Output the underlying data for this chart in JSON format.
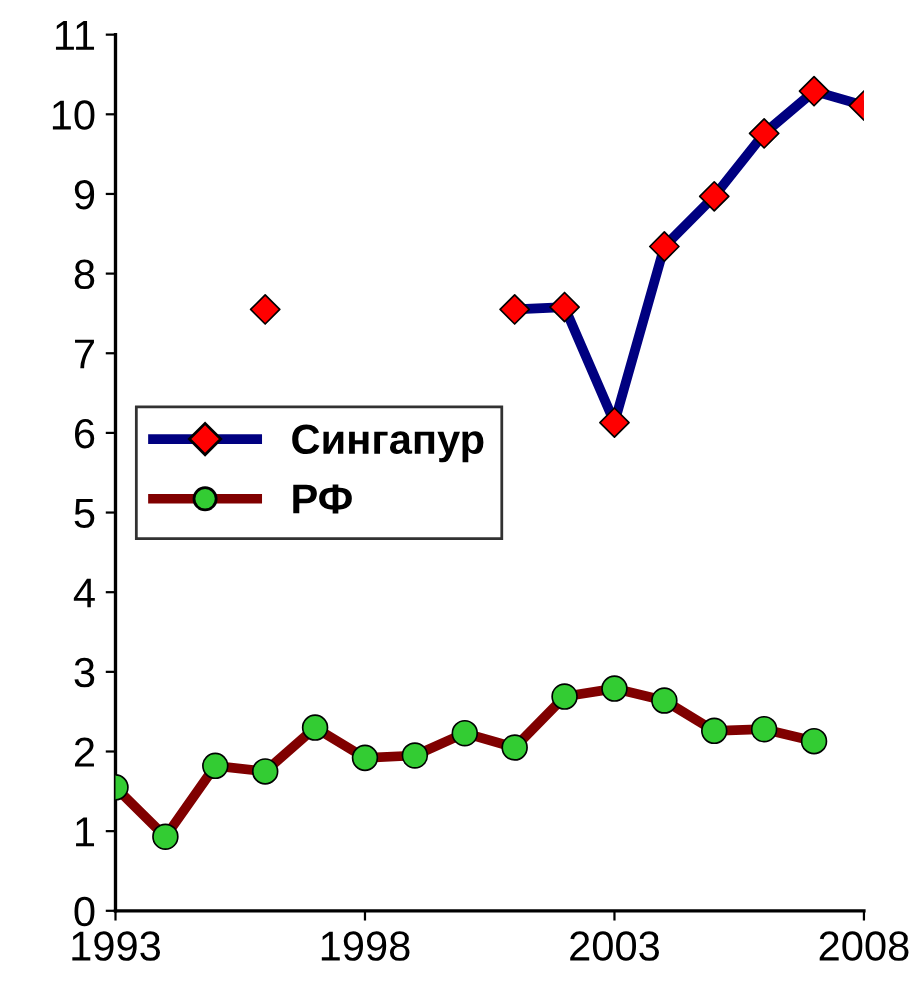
{
  "chart_data": {
    "type": "line",
    "x": [
      1993,
      1994,
      1995,
      1996,
      1997,
      1998,
      1999,
      2000,
      2001,
      2002,
      2003,
      2004,
      2005,
      2006,
      2007,
      2008
    ],
    "series": [
      {
        "name": "Сингапур",
        "color": "#000080",
        "marker": "diamond",
        "colors": [
          "#ff0000",
          "#ff0000",
          "#ff0000",
          "#ff0000",
          "#ff0000",
          "#ff0000",
          "#ff0000",
          "#ff0000",
          "#ff0000",
          "#ff0000",
          "#ff0000",
          "#ff0000",
          "#ff0000",
          "#ff0000",
          "#ff0000",
          "#ff0000"
        ],
        "values": [
          null,
          null,
          null,
          7.55,
          null,
          null,
          null,
          null,
          7.55,
          7.58,
          6.13,
          8.34,
          8.97,
          9.76,
          10.29,
          10.11
        ]
      },
      {
        "name": "РФ",
        "color": "#800000",
        "marker": "circle",
        "colors": [
          "#33cc33",
          "#33cc33",
          "#33cc33",
          "#33cc33",
          "#33cc33",
          "#33cc33",
          "#33cc33",
          "#33cc33",
          "#33cc33",
          "#33cc33",
          "#33cc33",
          "#33cc33",
          "#33cc33",
          "#33cc33",
          "#33cc33",
          "#33cc33"
        ],
        "values": [
          1.55,
          0.93,
          1.82,
          1.75,
          2.3,
          1.92,
          1.95,
          2.23,
          2.05,
          2.69,
          2.79,
          2.64,
          2.26,
          2.28,
          2.13,
          null
        ]
      }
    ],
    "xlim": [
      1993,
      2008
    ],
    "xticks": [
      1993,
      1998,
      2003,
      2008
    ],
    "ylim": [
      0,
      11
    ],
    "yticks": [
      0,
      1,
      2,
      3,
      4,
      5,
      6,
      7,
      8,
      9,
      10,
      11
    ],
    "grid": false,
    "legend": "center left",
    "line_style": "solid"
  }
}
